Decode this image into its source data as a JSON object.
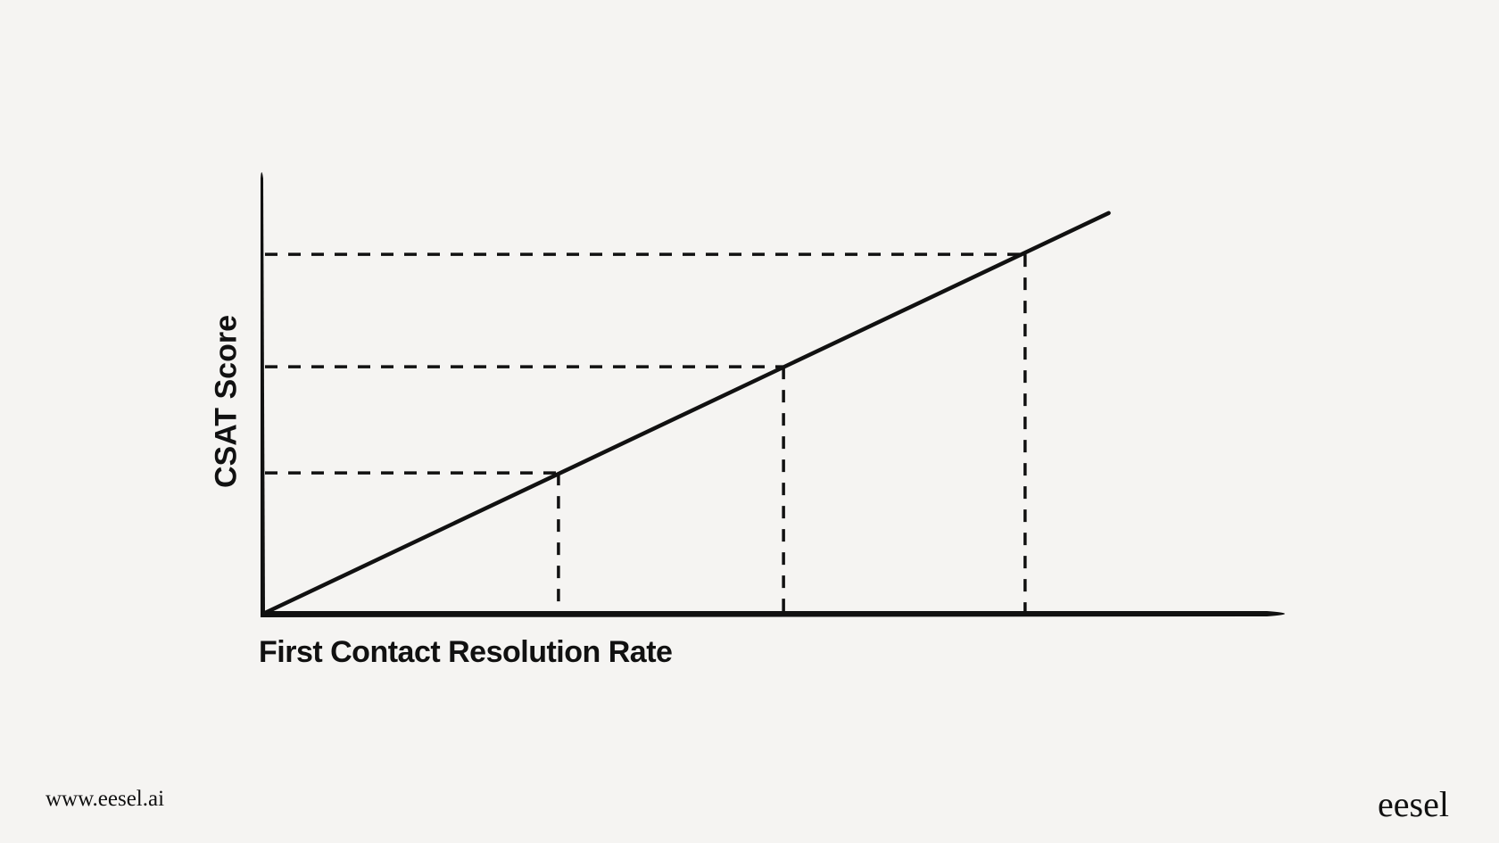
{
  "chart_data": {
    "type": "line",
    "title": "",
    "xlabel": "First Contact Resolution Rate",
    "ylabel": "CSAT Score",
    "xlim": [
      0,
      1
    ],
    "ylim": [
      0,
      1
    ],
    "grid": false,
    "series": [
      {
        "x": [
          0,
          0.819
        ],
        "y": [
          0,
          0.902
        ]
      }
    ],
    "highlighted_points": [
      {
        "x": 0.286,
        "y": 0.317
      },
      {
        "x": 0.504,
        "y": 0.556
      },
      {
        "x": 0.738,
        "y": 0.809
      }
    ],
    "line_color": "#111111",
    "background": "#f5f4f2"
  },
  "footer": {
    "url": "www.eesel.ai",
    "logo": "eesel"
  }
}
